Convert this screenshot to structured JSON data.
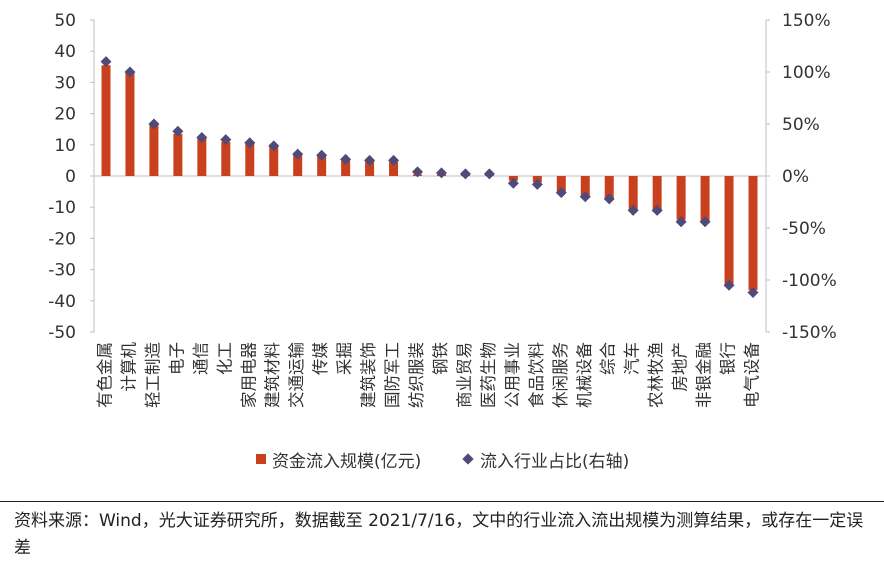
{
  "chart_data": {
    "type": "bar",
    "categories": [
      "有色金属",
      "计算机",
      "轻工制造",
      "电子",
      "通信",
      "化工",
      "家用电器",
      "建筑材料",
      "交通运输",
      "传媒",
      "采掘",
      "建筑装饰",
      "国防军工",
      "纺织服装",
      "钢铁",
      "商业贸易",
      "医药生物",
      "公用事业",
      "食品饮料",
      "休闲服务",
      "机械设备",
      "综合",
      "汽车",
      "农林牧渔",
      "房地产",
      "非银金融",
      "银行",
      "电气设备"
    ],
    "series": [
      {
        "name": "资金流入规模(亿元)",
        "axis": "left",
        "type": "bar",
        "values": [
          35.5,
          33.5,
          16.5,
          13.5,
          12,
          11,
          11,
          9.5,
          7,
          6.5,
          5.5,
          5,
          4.5,
          0.5,
          0.5,
          0.3,
          0.3,
          -1.5,
          -2,
          -5,
          -6.5,
          -7,
          -11,
          -11.5,
          -14,
          -14.5,
          -34.5,
          -36.5
        ],
        "color": "#c9401f"
      },
      {
        "name": "流入行业占比(右轴)",
        "axis": "right",
        "type": "scatter",
        "values": [
          110,
          100,
          50,
          43,
          37,
          35,
          32,
          29,
          21,
          20,
          16,
          15,
          15,
          4,
          3,
          2,
          2,
          -7,
          -8,
          -16,
          -20,
          -22,
          -33,
          -33,
          -44,
          -44,
          -105,
          -112
        ],
        "color": "#4f4a78"
      }
    ],
    "y_left": {
      "min": -50,
      "max": 50,
      "step": 10,
      "ticks": [
        "50",
        "40",
        "30",
        "20",
        "10",
        "0",
        "-10",
        "-20",
        "-30",
        "-40",
        "-50"
      ]
    },
    "y_right": {
      "min": -150,
      "max": 150,
      "step": 50,
      "ticks": [
        "150%",
        "100%",
        "50%",
        "0%",
        "-50%",
        "-100%",
        "-150%"
      ]
    },
    "legend_position": "bottom"
  },
  "source_note": "资料来源：Wind，光大证券研究所，数据截至 2021/7/16，文中的行业流入流出规模为测算结果，或存在一定误差"
}
